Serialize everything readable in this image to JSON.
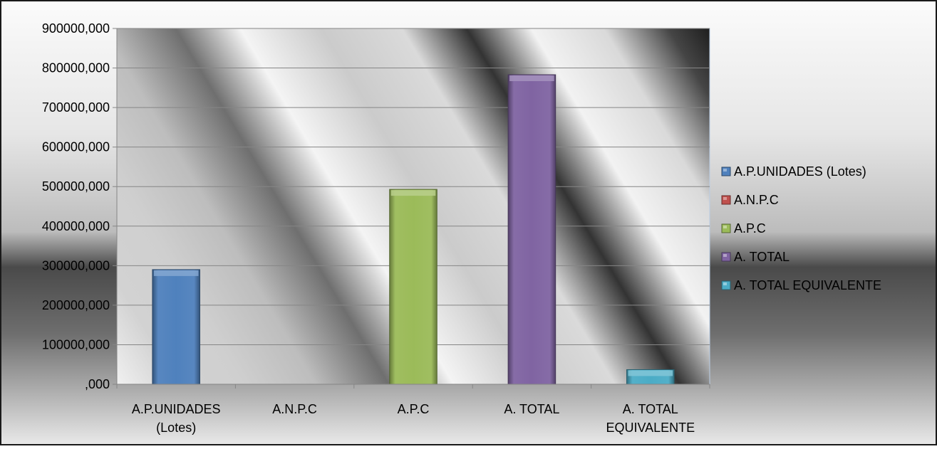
{
  "chart_data": {
    "type": "bar",
    "categories": [
      "A.P.UNIDADES (Lotes)",
      "A.N.P.C",
      "A.P.C",
      "A. TOTAL",
      "A. TOTAL  EQUIVALENTE"
    ],
    "category_tick_lines": [
      [
        "A.P.UNIDADES",
        "(Lotes)"
      ],
      [
        "A.N.P.C"
      ],
      [
        "A.P.C"
      ],
      [
        "A. TOTAL"
      ],
      [
        "A. TOTAL",
        "EQUIVALENTE"
      ]
    ],
    "values": [
      290000,
      0,
      493000,
      783000,
      37000
    ],
    "colors": [
      "#4F81BD",
      "#C0504D",
      "#9BBB59",
      "#8064A2",
      "#4BACC6"
    ],
    "ylim": [
      0,
      900000
    ],
    "yticks": [
      0,
      100000,
      200000,
      300000,
      400000,
      500000,
      600000,
      700000,
      800000,
      900000
    ],
    "ytick_labels": [
      ",000",
      "100000,000",
      "200000,000",
      "300000,000",
      "400000,000",
      "500000,000",
      "600000,000",
      "700000,000",
      "800000,000",
      "900000,000"
    ],
    "legend": {
      "position": "right",
      "entries": [
        "A.P.UNIDADES (Lotes)",
        "A.N.P.C",
        "A.P.C",
        "A. TOTAL",
        "A. TOTAL  EQUIVALENTE"
      ]
    },
    "grid": true
  }
}
